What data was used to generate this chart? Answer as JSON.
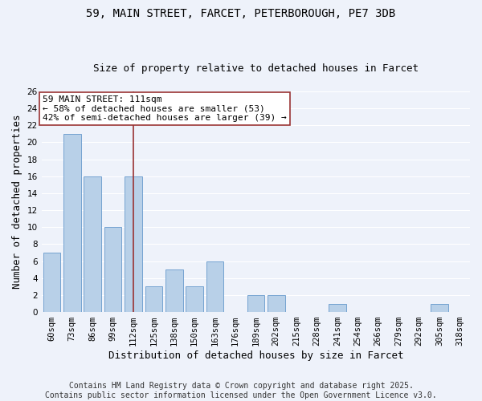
{
  "title_line1": "59, MAIN STREET, FARCET, PETERBOROUGH, PE7 3DB",
  "title_line2": "Size of property relative to detached houses in Farcet",
  "xlabel": "Distribution of detached houses by size in Farcet",
  "ylabel": "Number of detached properties",
  "bins": [
    "60sqm",
    "73sqm",
    "86sqm",
    "99sqm",
    "112sqm",
    "125sqm",
    "138sqm",
    "150sqm",
    "163sqm",
    "176sqm",
    "189sqm",
    "202sqm",
    "215sqm",
    "228sqm",
    "241sqm",
    "254sqm",
    "266sqm",
    "279sqm",
    "292sqm",
    "305sqm",
    "318sqm"
  ],
  "values": [
    7,
    21,
    16,
    10,
    16,
    3,
    5,
    3,
    6,
    0,
    2,
    2,
    0,
    0,
    1,
    0,
    0,
    0,
    0,
    1,
    0
  ],
  "bar_color": "#b8d0e8",
  "bar_edge_color": "#6699cc",
  "vline_x_index": 4,
  "vline_color": "#993333",
  "ylim": [
    0,
    26
  ],
  "yticks": [
    0,
    2,
    4,
    6,
    8,
    10,
    12,
    14,
    16,
    18,
    20,
    22,
    24,
    26
  ],
  "annotation_line1": "59 MAIN STREET: 111sqm",
  "annotation_line2": "← 58% of detached houses are smaller (53)",
  "annotation_line3": "42% of semi-detached houses are larger (39) →",
  "annotation_box_color": "#ffffff",
  "annotation_box_edge": "#993333",
  "footer_text": "Contains HM Land Registry data © Crown copyright and database right 2025.\nContains public sector information licensed under the Open Government Licence v3.0.",
  "background_color": "#eef2fa",
  "grid_color": "#ffffff",
  "title_fontsize": 10,
  "subtitle_fontsize": 9,
  "axis_label_fontsize": 9,
  "tick_fontsize": 7.5,
  "annotation_fontsize": 8,
  "footer_fontsize": 7
}
